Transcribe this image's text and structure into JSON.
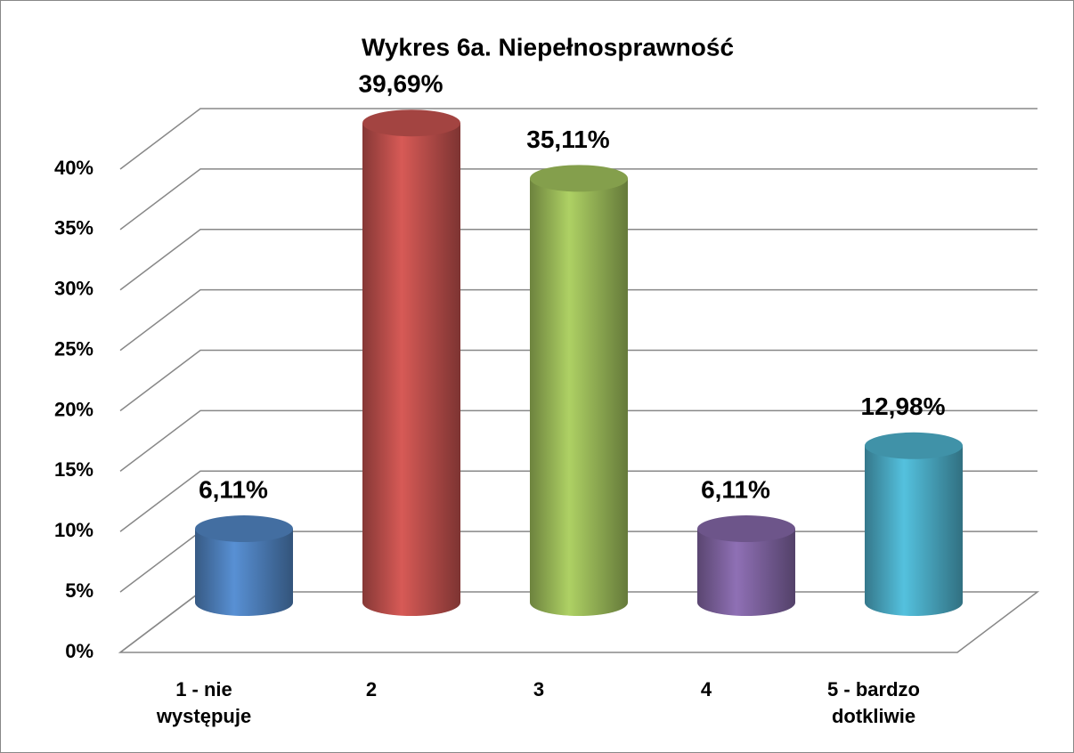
{
  "chart_data": {
    "type": "bar3d",
    "title": "Wykres 6a. Niepełnosprawność",
    "categories": [
      "1 - nie występuje",
      "2",
      "3",
      "4",
      "5 - bardzo dotkliwie"
    ],
    "values": [
      6.11,
      39.69,
      35.11,
      6.11,
      12.98
    ],
    "value_labels": [
      "6,11%",
      "39,69%",
      "35,11%",
      "6,11%",
      "12,98%"
    ],
    "colors": [
      "#4f81bd",
      "#c0504d",
      "#9bbb59",
      "#8064a2",
      "#4bacc6"
    ],
    "ylim": [
      0,
      40
    ],
    "yticks": [
      {
        "value": 0,
        "label": "0%"
      },
      {
        "value": 5,
        "label": "5%"
      },
      {
        "value": 10,
        "label": "10%"
      },
      {
        "value": 15,
        "label": "15%"
      },
      {
        "value": 20,
        "label": "20%"
      },
      {
        "value": 25,
        "label": "25%"
      },
      {
        "value": 30,
        "label": "30%"
      },
      {
        "value": 35,
        "label": "35%"
      },
      {
        "value": 40,
        "label": "40%"
      }
    ],
    "grid": true
  }
}
